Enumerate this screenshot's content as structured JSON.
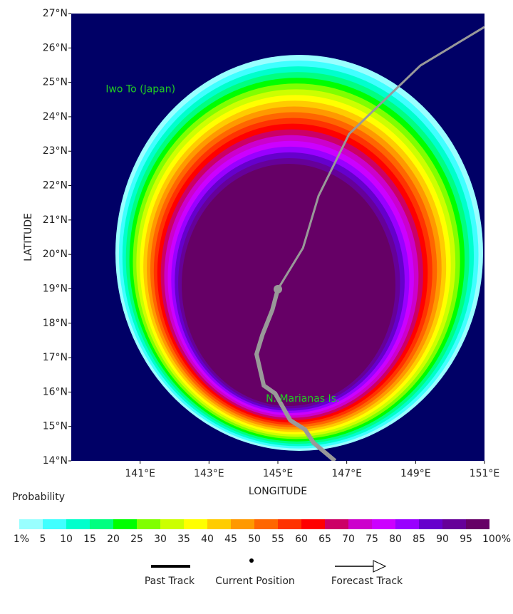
{
  "map": {
    "xlim": [
      139,
      151
    ],
    "ylim": [
      14,
      27
    ],
    "x_axis_label": "LONGITUDE",
    "y_axis_label": "LATITUDE",
    "xticks": [
      {
        "value": 141,
        "label": "141°E"
      },
      {
        "value": 143,
        "label": "143°E"
      },
      {
        "value": 145,
        "label": "145°E"
      },
      {
        "value": 147,
        "label": "147°E"
      },
      {
        "value": 149,
        "label": "149°E"
      },
      {
        "value": 151,
        "label": "151°E"
      }
    ],
    "yticks": [
      {
        "value": 14,
        "label": "14°N"
      },
      {
        "value": 15,
        "label": "15°N"
      },
      {
        "value": 16,
        "label": "16°N"
      },
      {
        "value": 17,
        "label": "17°N"
      },
      {
        "value": 18,
        "label": "18°N"
      },
      {
        "value": 19,
        "label": "19°N"
      },
      {
        "value": 20,
        "label": "20°N"
      },
      {
        "value": 21,
        "label": "21°N"
      },
      {
        "value": 22,
        "label": "22°N"
      },
      {
        "value": 23,
        "label": "23°N"
      },
      {
        "value": 24,
        "label": "24°N"
      },
      {
        "value": 25,
        "label": "25°N"
      },
      {
        "value": 26,
        "label": "26°N"
      },
      {
        "value": 27,
        "label": "27°N"
      }
    ],
    "places": [
      {
        "name": "Iwo To (Japan)",
        "lon": 140.0,
        "lat": 24.8
      },
      {
        "name": "N. Marianas Is.",
        "lon": 144.65,
        "lat": 15.8
      }
    ],
    "past_track": {
      "lon": [
        145.0,
        144.84,
        144.55,
        144.38,
        144.59,
        144.92,
        145.36,
        145.79,
        146.04,
        146.66
      ],
      "lat": [
        18.99,
        18.39,
        17.66,
        17.1,
        16.19,
        15.96,
        15.18,
        14.91,
        14.52,
        14.0
      ]
    },
    "forecast_track": {
      "lon": [
        145.0,
        145.73,
        146.18,
        147.07,
        149.14,
        151.0
      ],
      "lat": [
        18.99,
        20.19,
        21.7,
        23.5,
        25.49,
        26.61
      ]
    }
  },
  "colorbar": {
    "title": "Probability",
    "ticks": [
      {
        "value": 1,
        "label": "1%"
      },
      5,
      10,
      15,
      20,
      25,
      30,
      35,
      40,
      45,
      50,
      55,
      60,
      65,
      70,
      75,
      80,
      85,
      90,
      95,
      {
        "value": 100,
        "label": "100%"
      }
    ],
    "colors": [
      "#99ffff",
      "#40ffff",
      "#00ffcc",
      "#00ff80",
      "#00ff00",
      "#80ff00",
      "#ccff00",
      "#ffff00",
      "#ffcc00",
      "#ff9900",
      "#ff6600",
      "#ff3300",
      "#ff0000",
      "#cc0066",
      "#cc00cc",
      "#cc00ff",
      "#9900ff",
      "#6600cc",
      "#660099",
      "#660066"
    ]
  },
  "legend": {
    "past": "Past Track",
    "current": "Current Position",
    "forecast": "Forecast Track"
  }
}
